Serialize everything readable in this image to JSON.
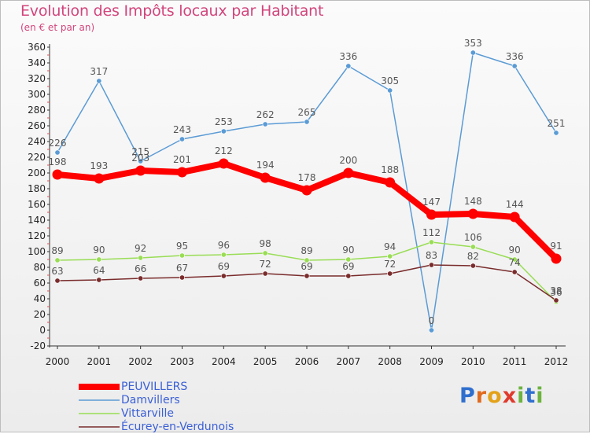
{
  "title": "Evolution des Impôts locaux par Habitant",
  "subtitle": "(en € et par an)",
  "logo": {
    "text": "Proxiti",
    "letters": [
      "P",
      "r",
      "o",
      "x",
      "i",
      "t",
      "i"
    ],
    "colors": [
      "#2f6fce",
      "#e06a1e",
      "#e3a21a",
      "#e03a2c",
      "#6db33f",
      "#2f6fce",
      "#6db33f"
    ]
  },
  "colors": {
    "peuvillers": "#ff0000",
    "damvillers": "#5b9bd5",
    "vittarville": "#99dd55",
    "ecurey": "#7a2c2c"
  },
  "chart_data": {
    "type": "line",
    "title": "Evolution des Impôts locaux par Habitant",
    "subtitle": "(en € et par an)",
    "x": [
      "2000",
      "2001",
      "2002",
      "2003",
      "2004",
      "2005",
      "2006",
      "2007",
      "2008",
      "2009",
      "2010",
      "2011",
      "2012"
    ],
    "ylim": [
      -20,
      360
    ],
    "yticks": [
      -20,
      0,
      20,
      40,
      60,
      80,
      100,
      120,
      140,
      160,
      180,
      200,
      220,
      240,
      260,
      280,
      300,
      320,
      340,
      360
    ],
    "grid": false,
    "legend_position": "bottom-left",
    "series": [
      {
        "name": "PEUVILLERS",
        "color": "#ff0000",
        "values": [
          198,
          193,
          203,
          201,
          212,
          194,
          178,
          200,
          188,
          147,
          148,
          144,
          91
        ],
        "labels": [
          "198",
          "193",
          "203",
          "201",
          "212",
          "194",
          "178",
          "200",
          "188",
          "147",
          "148",
          "144",
          "91"
        ]
      },
      {
        "name": "Damvillers",
        "color": "#5b9bd5",
        "values": [
          226,
          317,
          215,
          243,
          253,
          262,
          265,
          336,
          305,
          0,
          353,
          336,
          251
        ],
        "labels": [
          "226",
          "317",
          "215",
          "243",
          "253",
          "262",
          "265",
          "336",
          "305",
          "0",
          "353",
          "336",
          "251"
        ]
      },
      {
        "name": "Vittarville",
        "color": "#99dd55",
        "values": [
          89,
          90,
          92,
          95,
          96,
          98,
          89,
          90,
          94,
          112,
          106,
          90,
          36
        ],
        "labels": [
          "89",
          "90",
          "92",
          "95",
          "96",
          "98",
          "89",
          "90",
          "94",
          "112",
          "106",
          "90",
          "36"
        ]
      },
      {
        "name": "Écurey-en-Verdunois",
        "color": "#7a2c2c",
        "values": [
          63,
          64,
          66,
          67,
          69,
          72,
          69,
          69,
          72,
          83,
          82,
          74,
          38
        ],
        "labels": [
          "63",
          "64",
          "66",
          "67",
          "69",
          "72",
          "69",
          "69",
          "72",
          "83",
          "82",
          "74",
          "38"
        ]
      }
    ]
  }
}
